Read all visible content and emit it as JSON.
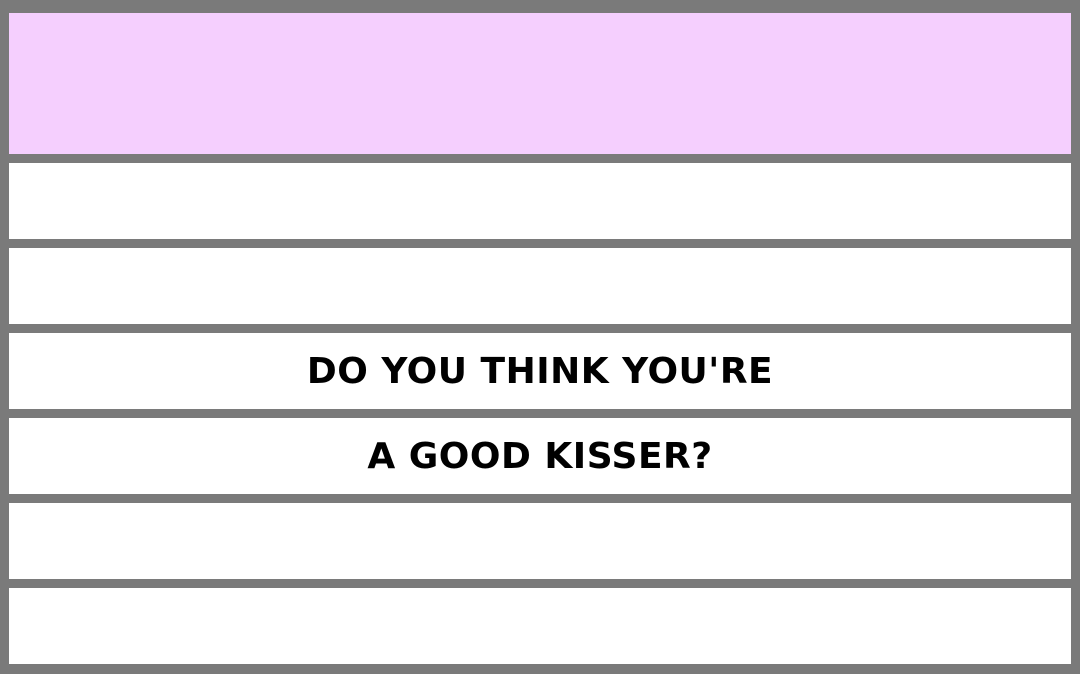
{
  "colors": {
    "frame": "#7a7a7a",
    "header_fill": "#f5cffe",
    "row_fill": "#ffffff",
    "text": "#000000"
  },
  "question": {
    "line1": "DO YOU THINK YOU'RE",
    "line2": "A GOOD KISSER?"
  }
}
